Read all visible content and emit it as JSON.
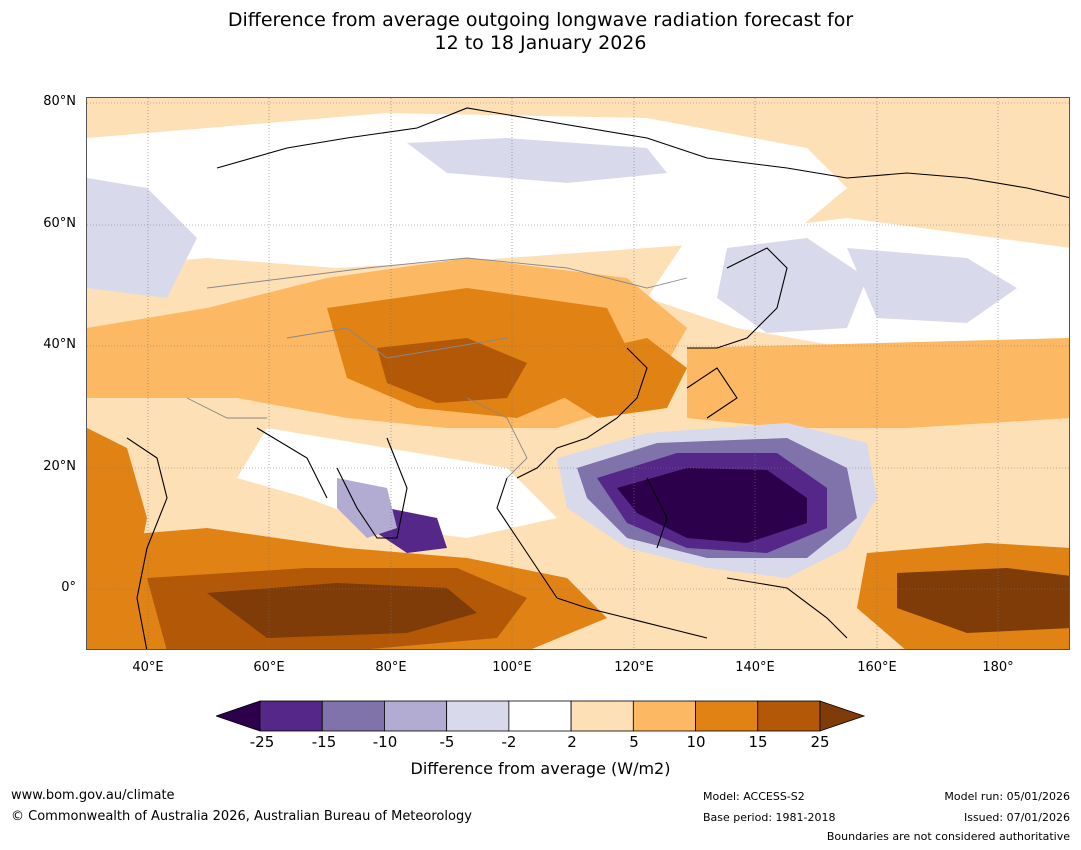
{
  "title": {
    "line1": "Difference from average outgoing longwave radiation forecast for",
    "line2": "12 to 18 January 2026"
  },
  "map": {
    "lat_labels": [
      "80°N",
      "60°N",
      "40°N",
      "20°N",
      "0°"
    ],
    "lon_labels": [
      "40°E",
      "60°E",
      "80°E",
      "100°E",
      "120°E",
      "140°E",
      "160°E",
      "180°"
    ],
    "extent": {
      "lon_min": 30,
      "lon_max": 192,
      "lat_min": -10,
      "lat_max": 81
    }
  },
  "colorbar": {
    "ticks": [
      "-25",
      "-15",
      "-10",
      "-5",
      "-2",
      "2",
      "5",
      "10",
      "15",
      "25"
    ],
    "colors": [
      "#2d004b",
      "#542788",
      "#8073ac",
      "#b2abd2",
      "#d8daeb",
      "#ffffff",
      "#fee0b6",
      "#fdb863",
      "#e08214",
      "#b35806",
      "#7f3b08"
    ],
    "label": "Difference from average (W/m2)"
  },
  "footer": {
    "website": "www.bom.gov.au/climate",
    "copyright": "© Commonwealth of Australia 2026, Australian Bureau of Meteorology",
    "model": "Model: ACCESS-S2",
    "base_period": "Base period: 1981-2018",
    "model_run": "Model run: 05/01/2026",
    "issued": "Issued: 07/01/2026",
    "disclaimer": "Boundaries are not considered authoritative"
  }
}
